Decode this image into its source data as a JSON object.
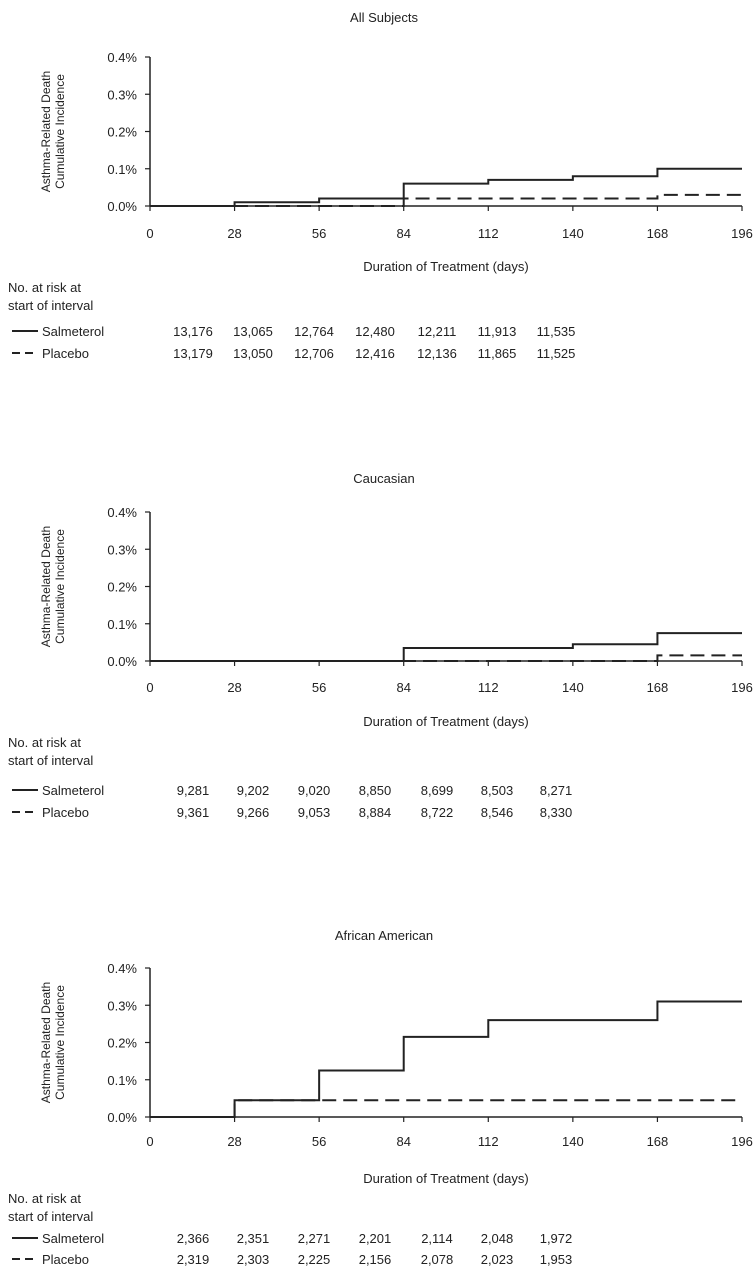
{
  "risk_header": [
    "No. at risk at",
    "start of interval"
  ],
  "chart_data": [
    {
      "type": "line",
      "title": "All Subjects",
      "ylabel": [
        "Asthma-Related Death",
        "Cumulative Incidence"
      ],
      "xlabel": "Duration of Treatment (days)",
      "xlim": [
        0,
        196
      ],
      "ylim": [
        0,
        0.4
      ],
      "xticks": [
        "0",
        "28",
        "56",
        "84",
        "112",
        "140",
        "168",
        "196"
      ],
      "yticks": [
        "0.0%",
        "0.1%",
        "0.2%",
        "0.3%",
        "0.4%"
      ],
      "series": [
        {
          "name": "Salmeterol",
          "style": "solid",
          "x": [
            0,
            28,
            56,
            84,
            112,
            140,
            168,
            196
          ],
          "y": [
            0,
            0.01,
            0.02,
            0.06,
            0.07,
            0.08,
            0.1,
            0.1
          ],
          "at_risk": [
            "13,176",
            "13,065",
            "12,764",
            "12,480",
            "12,211",
            "11,913",
            "11,535"
          ]
        },
        {
          "name": "Placebo",
          "style": "dashed",
          "x": [
            0,
            28,
            56,
            84,
            112,
            140,
            168,
            196
          ],
          "y": [
            0,
            0,
            0,
            0.02,
            0.02,
            0.02,
            0.03,
            0.03
          ],
          "at_risk": [
            "13,179",
            "13,050",
            "12,706",
            "12,416",
            "12,136",
            "11,865",
            "11,525"
          ]
        }
      ]
    },
    {
      "type": "line",
      "title": "Caucasian",
      "ylabel": [
        "Asthma-Related Death",
        "Cumulative Incidence"
      ],
      "xlabel": "Duration of Treatment (days)",
      "xlim": [
        0,
        196
      ],
      "ylim": [
        0,
        0.4
      ],
      "xticks": [
        "0",
        "28",
        "56",
        "84",
        "112",
        "140",
        "168",
        "196"
      ],
      "yticks": [
        "0.0%",
        "0.1%",
        "0.2%",
        "0.3%",
        "0.4%"
      ],
      "series": [
        {
          "name": "Salmeterol",
          "style": "solid",
          "x": [
            0,
            28,
            56,
            84,
            112,
            140,
            168,
            196
          ],
          "y": [
            0,
            0,
            0,
            0.035,
            0.035,
            0.045,
            0.075,
            0.075
          ],
          "at_risk": [
            "9,281",
            "9,202",
            "9,020",
            "8,850",
            "8,699",
            "8,503",
            "8,271"
          ]
        },
        {
          "name": "Placebo",
          "style": "dashed",
          "x": [
            0,
            28,
            56,
            84,
            112,
            140,
            168,
            196
          ],
          "y": [
            0,
            0,
            0,
            0,
            0,
            0,
            0.015,
            0.015
          ],
          "at_risk": [
            "9,361",
            "9,266",
            "9,053",
            "8,884",
            "8,722",
            "8,546",
            "8,330"
          ]
        }
      ]
    },
    {
      "type": "line",
      "title": "African American",
      "ylabel": [
        "Asthma-Related Death",
        "Cumulative Incidence"
      ],
      "xlabel": "Duration of Treatment (days)",
      "xlim": [
        0,
        196
      ],
      "ylim": [
        0,
        0.4
      ],
      "xticks": [
        "0",
        "28",
        "56",
        "84",
        "112",
        "140",
        "168",
        "196"
      ],
      "yticks": [
        "0.0%",
        "0.1%",
        "0.2%",
        "0.3%",
        "0.4%"
      ],
      "series": [
        {
          "name": "Salmeterol",
          "style": "solid",
          "x": [
            0,
            28,
            56,
            84,
            112,
            140,
            168,
            196
          ],
          "y": [
            0,
            0.045,
            0.125,
            0.215,
            0.26,
            0.26,
            0.31,
            0.31
          ],
          "at_risk": [
            "2,366",
            "2,351",
            "2,271",
            "2,201",
            "2,114",
            "2,048",
            "1,972"
          ]
        },
        {
          "name": "Placebo",
          "style": "dashed",
          "x": [
            0,
            28,
            56,
            84,
            112,
            140,
            168,
            196
          ],
          "y": [
            0,
            0.045,
            0.045,
            0.045,
            0.045,
            0.045,
            0.045,
            0.045
          ],
          "at_risk": [
            "2,319",
            "2,303",
            "2,225",
            "2,156",
            "2,078",
            "2,023",
            "1,953"
          ]
        }
      ]
    }
  ]
}
